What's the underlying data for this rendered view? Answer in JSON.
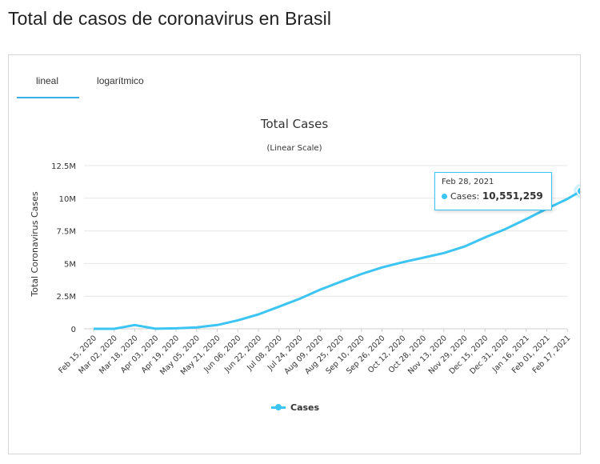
{
  "page": {
    "title": "Total de casos de coronavirus en Brasil"
  },
  "tabs": [
    {
      "label": "lineal",
      "active": true
    },
    {
      "label": "logarítmico",
      "active": false
    }
  ],
  "tooltip": {
    "date": "Feb 28, 2021",
    "series": "Cases",
    "value": "10,551,259"
  },
  "colors": {
    "series": "#3cc4f2",
    "grid": "#e6e6e6",
    "tab_active": "#3ab0e8"
  },
  "chart_data": {
    "type": "line",
    "title": "Total Cases",
    "subtitle": "(Linear Scale)",
    "ylabel": "Total Coronavirus Cases",
    "xlabel": "",
    "ylim": [
      0,
      12500000
    ],
    "yticks": [
      0,
      2500000,
      5000000,
      7500000,
      10000000,
      12500000
    ],
    "ytick_labels": [
      "0",
      "2.5M",
      "5M",
      "7.5M",
      "10M",
      "12.5M"
    ],
    "xtick_labels": [
      "Feb 15, 2020",
      "Mar 02, 2020",
      "Mar 18, 2020",
      "Apr 03, 2020",
      "Apr 19, 2020",
      "May 05, 2020",
      "May 21, 2020",
      "Jun 06, 2020",
      "Jun 22, 2020",
      "Jul 08, 2020",
      "Jul 24, 2020",
      "Aug 09, 2020",
      "Aug 25, 2020",
      "Sep 10, 2020",
      "Sep 26, 2020",
      "Oct 12, 2020",
      "Oct 28, 2020",
      "Nov 13, 2020",
      "Nov 29, 2020",
      "Dec 15, 2020",
      "Dec 31, 2020",
      "Jan 16, 2021",
      "Feb 01, 2021",
      "Feb 17, 2021"
    ],
    "grid": true,
    "legend": "bottom",
    "series": [
      {
        "name": "Cases",
        "x": [
          "Feb 15, 2020",
          "Mar 02, 2020",
          "Mar 18, 2020",
          "Apr 03, 2020",
          "Apr 19, 2020",
          "May 05, 2020",
          "May 21, 2020",
          "Jun 06, 2020",
          "Jun 22, 2020",
          "Jul 08, 2020",
          "Jul 24, 2020",
          "Aug 09, 2020",
          "Aug 25, 2020",
          "Sep 10, 2020",
          "Sep 26, 2020",
          "Oct 12, 2020",
          "Oct 28, 2020",
          "Nov 13, 2020",
          "Nov 29, 2020",
          "Dec 15, 2020",
          "Dec 31, 2020",
          "Jan 16, 2021",
          "Feb 01, 2021",
          "Feb 17, 2021",
          "Feb 28, 2021"
        ],
        "values": [
          0,
          2000,
          290000,
          9000,
          38000,
          110000,
          290000,
          650000,
          1100000,
          1700000,
          2300000,
          3000000,
          3600000,
          4200000,
          4700000,
          5100000,
          5450000,
          5800000,
          6300000,
          7000000,
          7650000,
          8400000,
          9200000,
          9950000,
          10551259
        ]
      }
    ]
  }
}
